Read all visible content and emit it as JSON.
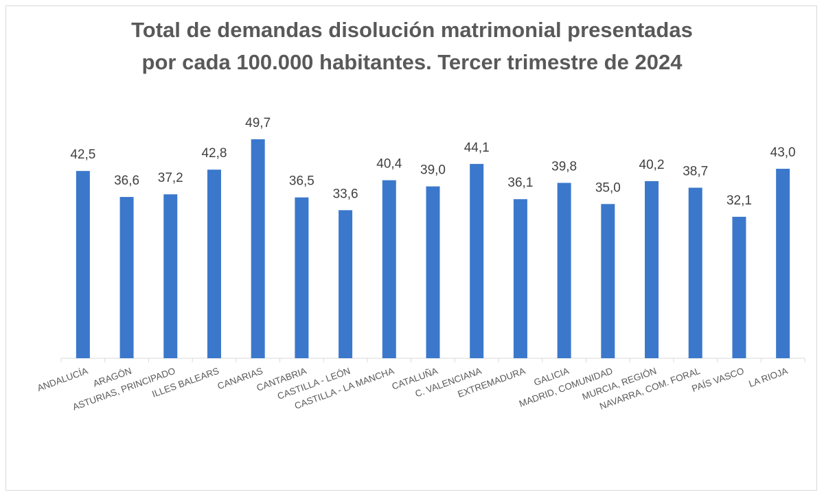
{
  "chart_data": {
    "type": "bar",
    "title": [
      "Total de demandas disolución matrimonial presentadas",
      "por cada 100.000 habitantes. Tercer trimestre de 2024"
    ],
    "xlabel": "",
    "ylabel": "",
    "ylim": [
      0,
      50
    ],
    "grid": false,
    "categories": [
      "ANDALUCÍA",
      "ARAGÓN",
      "ASTURIAS, PRINCIPADO",
      "ILLES BALEARS",
      "CANARIAS",
      "CANTABRIA",
      "CASTILLA - LEÓN",
      "CASTILLA - LA MANCHA",
      "CATALUÑA",
      "C. VALENCIANA",
      "EXTREMADURA",
      "GALICIA",
      "MADRID, COMUNIDAD",
      "MURCIA, REGIÓN",
      "NAVARRA, COM. FORAL",
      "PAÍS VASCO",
      "LA RIOJA"
    ],
    "values": [
      42.5,
      36.6,
      37.2,
      42.8,
      49.7,
      36.5,
      33.6,
      40.4,
      39.0,
      44.1,
      36.1,
      39.8,
      35.0,
      40.2,
      38.7,
      32.1,
      43.0
    ],
    "value_labels": [
      "42,5",
      "36,6",
      "37,2",
      "42,8",
      "49,7",
      "36,5",
      "33,6",
      "40,4",
      "39,0",
      "44,1",
      "36,1",
      "39,8",
      "35,0",
      "40,2",
      "38,7",
      "32,1",
      "43,0"
    ],
    "bar_color": "#3b78cc"
  }
}
